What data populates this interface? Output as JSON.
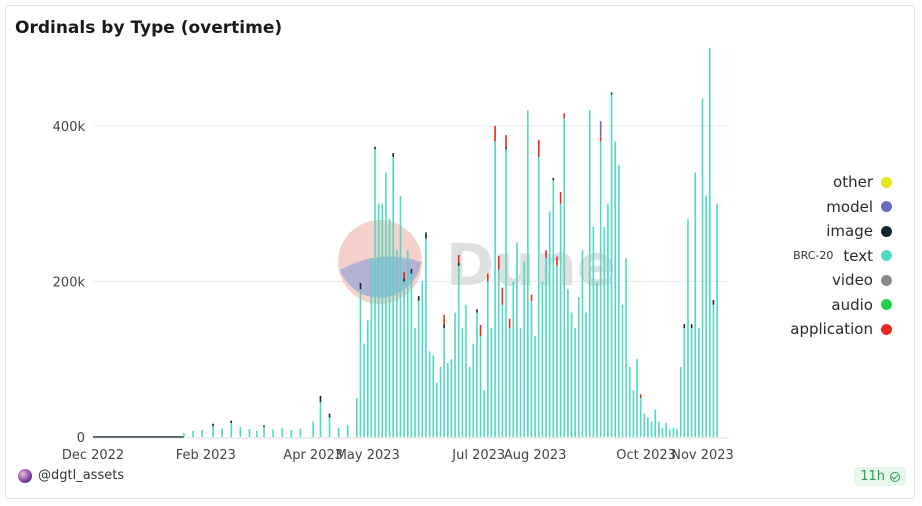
{
  "header": {
    "title": "Ordinals by Type (overtime)"
  },
  "footer": {
    "user": "@dgtl_assets",
    "age": "11h"
  },
  "watermark": {
    "text": "Dune"
  },
  "colors": {
    "other": "#e6e619",
    "model": "#6b6bbd",
    "image": "#10252f",
    "text": "#4fd9c4",
    "video": "#8a8a8a",
    "audio": "#22d24a",
    "application": "#e8291f"
  },
  "legend": [
    {
      "label": "other",
      "color": "#e6e619"
    },
    {
      "label": "model",
      "color": "#6b6bbd"
    },
    {
      "label": "image",
      "color": "#10252f"
    },
    {
      "label": "text",
      "sublabel": "BRC-20",
      "color": "#4fd9c4"
    },
    {
      "label": "video",
      "color": "#8a8a8a"
    },
    {
      "label": "audio",
      "color": "#22d24a"
    },
    {
      "label": "application",
      "color": "#e8291f"
    }
  ],
  "chart_data": {
    "type": "bar",
    "stacked": true,
    "title": "Ordinals by Type (overtime)",
    "xlabel": "",
    "ylabel": "",
    "ylim": [
      0,
      500000
    ],
    "y_ticks": [
      0,
      200000,
      400000
    ],
    "y_tick_labels": [
      "0",
      "200k",
      "400k"
    ],
    "x_ticks": [
      "2022-12-01",
      "2023-02-01",
      "2023-04-01",
      "2023-05-01",
      "2023-07-01",
      "2023-08-01",
      "2023-10-01",
      "2023-11-01"
    ],
    "x_tick_labels": [
      "Dec 2022",
      "Feb 2023",
      "Apr 2023",
      "May 2023",
      "Jul 2023",
      "Aug 2023",
      "Oct 2023",
      "Nov 2023"
    ],
    "x_range": [
      "2022-12-01",
      "2023-11-15"
    ],
    "grid": true,
    "legend_position": "right",
    "series_order": [
      "text",
      "image",
      "application",
      "model"
    ],
    "series": [
      {
        "name": "text",
        "points": [
          [
            "2023-01-20",
            5000
          ],
          [
            "2023-01-25",
            8000
          ],
          [
            "2023-01-30",
            9000
          ],
          [
            "2023-02-05",
            14000
          ],
          [
            "2023-02-10",
            11000
          ],
          [
            "2023-02-15",
            18000
          ],
          [
            "2023-02-20",
            13000
          ],
          [
            "2023-02-25",
            10000
          ],
          [
            "2023-03-01",
            8000
          ],
          [
            "2023-03-05",
            13000
          ],
          [
            "2023-03-10",
            10000
          ],
          [
            "2023-03-15",
            12000
          ],
          [
            "2023-03-20",
            9000
          ],
          [
            "2023-03-25",
            11000
          ],
          [
            "2023-04-01",
            20000
          ],
          [
            "2023-04-05",
            45000
          ],
          [
            "2023-04-10",
            25000
          ],
          [
            "2023-04-15",
            12000
          ],
          [
            "2023-04-20",
            15000
          ],
          [
            "2023-04-25",
            50000
          ],
          [
            "2023-04-27",
            190000
          ],
          [
            "2023-04-29",
            120000
          ],
          [
            "2023-05-01",
            150000
          ],
          [
            "2023-05-03",
            230000
          ],
          [
            "2023-05-05",
            370000
          ],
          [
            "2023-05-07",
            300000
          ],
          [
            "2023-05-09",
            300000
          ],
          [
            "2023-05-11",
            340000
          ],
          [
            "2023-05-13",
            280000
          ],
          [
            "2023-05-15",
            360000
          ],
          [
            "2023-05-17",
            240000
          ],
          [
            "2023-05-19",
            310000
          ],
          [
            "2023-05-21",
            200000
          ],
          [
            "2023-05-23",
            240000
          ],
          [
            "2023-05-25",
            210000
          ],
          [
            "2023-05-27",
            140000
          ],
          [
            "2023-05-29",
            175000
          ],
          [
            "2023-05-31",
            200000
          ],
          [
            "2023-06-02",
            255000
          ],
          [
            "2023-06-04",
            110000
          ],
          [
            "2023-06-06",
            105000
          ],
          [
            "2023-06-08",
            70000
          ],
          [
            "2023-06-10",
            90000
          ],
          [
            "2023-06-12",
            140000
          ],
          [
            "2023-06-14",
            95000
          ],
          [
            "2023-06-16",
            100000
          ],
          [
            "2023-06-18",
            160000
          ],
          [
            "2023-06-20",
            220000
          ],
          [
            "2023-06-22",
            140000
          ],
          [
            "2023-06-24",
            170000
          ],
          [
            "2023-06-26",
            90000
          ],
          [
            "2023-06-28",
            120000
          ],
          [
            "2023-06-30",
            160000
          ],
          [
            "2023-07-02",
            130000
          ],
          [
            "2023-07-04",
            60000
          ],
          [
            "2023-07-06",
            200000
          ],
          [
            "2023-07-08",
            140000
          ],
          [
            "2023-07-10",
            380000
          ],
          [
            "2023-07-12",
            215000
          ],
          [
            "2023-07-14",
            170000
          ],
          [
            "2023-07-16",
            370000
          ],
          [
            "2023-07-18",
            140000
          ],
          [
            "2023-07-20",
            200000
          ],
          [
            "2023-07-22",
            250000
          ],
          [
            "2023-07-24",
            140000
          ],
          [
            "2023-07-26",
            225000
          ],
          [
            "2023-07-28",
            420000
          ],
          [
            "2023-07-30",
            175000
          ],
          [
            "2023-08-01",
            130000
          ],
          [
            "2023-08-03",
            360000
          ],
          [
            "2023-08-05",
            200000
          ],
          [
            "2023-08-07",
            230000
          ],
          [
            "2023-08-09",
            290000
          ],
          [
            "2023-08-11",
            330000
          ],
          [
            "2023-08-13",
            220000
          ],
          [
            "2023-08-15",
            300000
          ],
          [
            "2023-08-17",
            410000
          ],
          [
            "2023-08-19",
            190000
          ],
          [
            "2023-08-21",
            160000
          ],
          [
            "2023-08-23",
            140000
          ],
          [
            "2023-08-25",
            180000
          ],
          [
            "2023-08-27",
            240000
          ],
          [
            "2023-08-29",
            160000
          ],
          [
            "2023-08-31",
            420000
          ],
          [
            "2023-09-02",
            270000
          ],
          [
            "2023-09-04",
            200000
          ],
          [
            "2023-09-06",
            380000
          ],
          [
            "2023-09-08",
            270000
          ],
          [
            "2023-09-10",
            300000
          ],
          [
            "2023-09-12",
            440000
          ],
          [
            "2023-09-14",
            380000
          ],
          [
            "2023-09-16",
            350000
          ],
          [
            "2023-09-18",
            170000
          ],
          [
            "2023-09-20",
            230000
          ],
          [
            "2023-09-22",
            90000
          ],
          [
            "2023-09-24",
            60000
          ],
          [
            "2023-09-26",
            100000
          ],
          [
            "2023-09-28",
            50000
          ],
          [
            "2023-09-30",
            30000
          ],
          [
            "2023-10-02",
            25000
          ],
          [
            "2023-10-04",
            20000
          ],
          [
            "2023-10-06",
            35000
          ],
          [
            "2023-10-08",
            20000
          ],
          [
            "2023-10-10",
            12000
          ],
          [
            "2023-10-12",
            18000
          ],
          [
            "2023-10-14",
            10000
          ],
          [
            "2023-10-16",
            12000
          ],
          [
            "2023-10-18",
            10000
          ],
          [
            "2023-10-20",
            90000
          ],
          [
            "2023-10-22",
            140000
          ],
          [
            "2023-10-24",
            280000
          ],
          [
            "2023-10-26",
            140000
          ],
          [
            "2023-10-28",
            340000
          ],
          [
            "2023-10-30",
            140000
          ],
          [
            "2023-11-01",
            435000
          ],
          [
            "2023-11-03",
            310000
          ],
          [
            "2023-11-05",
            500000
          ],
          [
            "2023-11-07",
            170000
          ],
          [
            "2023-11-09",
            300000
          ]
        ]
      },
      {
        "name": "image",
        "points": [
          [
            "2023-02-05",
            3000
          ],
          [
            "2023-02-15",
            3000
          ],
          [
            "2023-03-05",
            2000
          ],
          [
            "2023-04-05",
            8000
          ],
          [
            "2023-04-10",
            5000
          ],
          [
            "2023-04-27",
            8000
          ],
          [
            "2023-05-05",
            3000
          ],
          [
            "2023-05-15",
            5000
          ],
          [
            "2023-05-21",
            4000
          ],
          [
            "2023-05-25",
            6000
          ],
          [
            "2023-05-29",
            6000
          ],
          [
            "2023-06-02",
            8000
          ],
          [
            "2023-06-12",
            5000
          ],
          [
            "2023-06-20",
            4000
          ],
          [
            "2023-06-30",
            4000
          ],
          [
            "2023-07-16",
            3000
          ],
          [
            "2023-08-11",
            3000
          ],
          [
            "2023-09-12",
            3000
          ],
          [
            "2023-10-22",
            5000
          ],
          [
            "2023-10-26",
            5000
          ],
          [
            "2023-11-07",
            6000
          ]
        ]
      },
      {
        "name": "application",
        "points": [
          [
            "2023-05-21",
            8000
          ],
          [
            "2023-06-12",
            12000
          ],
          [
            "2023-06-20",
            10000
          ],
          [
            "2023-07-02",
            14000
          ],
          [
            "2023-07-06",
            10000
          ],
          [
            "2023-07-10",
            20000
          ],
          [
            "2023-07-12",
            18000
          ],
          [
            "2023-07-14",
            22000
          ],
          [
            "2023-07-16",
            15000
          ],
          [
            "2023-07-18",
            12000
          ],
          [
            "2023-07-30",
            8000
          ],
          [
            "2023-08-03",
            22000
          ],
          [
            "2023-08-07",
            10000
          ],
          [
            "2023-08-13",
            12000
          ],
          [
            "2023-08-15",
            15000
          ],
          [
            "2023-08-17",
            6000
          ],
          [
            "2023-09-06",
            6000
          ],
          [
            "2023-09-28",
            5000
          ]
        ]
      },
      {
        "name": "model",
        "points": [
          [
            "2023-09-06",
            20000
          ]
        ]
      }
    ]
  }
}
